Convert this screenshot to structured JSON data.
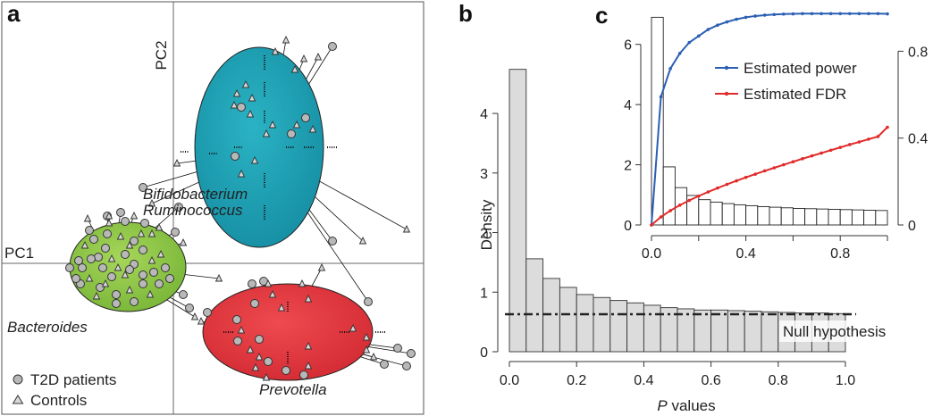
{
  "panel_labels": [
    "a",
    "b",
    "c"
  ],
  "chart_data": [
    {
      "panel": "a",
      "type": "scatter",
      "xlabel": "PC1",
      "ylabel": "PC2",
      "legend": [
        {
          "name": "T2D patients",
          "marker": "circle",
          "color": "#b8b8b8"
        },
        {
          "name": "Controls",
          "marker": "triangle",
          "color": "#d8d8d8"
        }
      ],
      "legend_position": "bottom-left",
      "grid": false,
      "clusters": [
        {
          "name": "Bacteroides",
          "color": "#8dc63f"
        },
        {
          "name": "Bifidobacterium",
          "color": "#1ba1b4"
        },
        {
          "name": "Ruminococcus",
          "color": "#1ba1b4"
        },
        {
          "name": "Prevotella",
          "color": "#e2383f"
        }
      ]
    },
    {
      "panel": "b",
      "type": "bar",
      "xlabel_italic": "P",
      "xlabel_rest": " values",
      "ylabel": "Density",
      "xlim": [
        0,
        1
      ],
      "ylim": [
        0,
        4.9
      ],
      "x_ticks": [
        "0.0",
        "0.2",
        "0.4",
        "0.6",
        "0.8",
        "1.0"
      ],
      "y_ticks": [
        "0",
        "1",
        "2",
        "3",
        "4"
      ],
      "bin_width": 0.05,
      "values": [
        4.74,
        1.56,
        1.23,
        1.08,
        0.96,
        0.91,
        0.86,
        0.82,
        0.78,
        0.74,
        0.72,
        0.7,
        0.7,
        0.69,
        0.68,
        0.67,
        0.66,
        0.65,
        0.65,
        0.64
      ],
      "null_hypothesis": 0.63,
      "annotation": "Null hypothesis",
      "bar_color": "#dcdcdc"
    },
    {
      "panel": "c",
      "type": "line",
      "xlim": [
        0,
        1
      ],
      "ylim_left": [
        0,
        7.0
      ],
      "ylim_right": [
        0,
        0.97
      ],
      "x_ticks": [
        "0.0",
        "0.4",
        "0.8"
      ],
      "y_ticks_left": [
        "0",
        "2",
        "4",
        "6"
      ],
      "y_ticks_right": [
        "0",
        "0.4",
        "0.8"
      ],
      "hist_bin_width": 0.05,
      "hist_values": [
        6.9,
        1.93,
        1.24,
        0.98,
        0.84,
        0.76,
        0.71,
        0.67,
        0.64,
        0.61,
        0.59,
        0.57,
        0.55,
        0.54,
        0.53,
        0.52,
        0.51,
        0.5,
        0.49,
        0.48
      ],
      "legend_position": "center-right",
      "series": [
        {
          "name": "Estimated power",
          "color": "#2b5fb4",
          "axis": "right",
          "x": [
            0,
            0.04,
            0.08,
            0.12,
            0.16,
            0.2,
            0.24,
            0.28,
            0.32,
            0.36,
            0.4,
            0.44,
            0.48,
            0.52,
            0.56,
            0.6,
            0.64,
            0.68,
            0.72,
            0.76,
            0.8,
            0.84,
            0.88,
            0.92,
            0.96,
            1.0
          ],
          "y": [
            0,
            0.59,
            0.72,
            0.79,
            0.84,
            0.87,
            0.9,
            0.92,
            0.935,
            0.947,
            0.956,
            0.962,
            0.966,
            0.969,
            0.971,
            0.972,
            0.973,
            0.973,
            0.973,
            0.973,
            0.973,
            0.973,
            0.973,
            0.973,
            0.973,
            0.972
          ]
        },
        {
          "name": "Estimated FDR",
          "color": "#e12a2a",
          "axis": "right",
          "x": [
            0,
            0.04,
            0.08,
            0.12,
            0.16,
            0.2,
            0.24,
            0.28,
            0.32,
            0.36,
            0.4,
            0.44,
            0.48,
            0.52,
            0.56,
            0.6,
            0.64,
            0.68,
            0.72,
            0.76,
            0.8,
            0.84,
            0.88,
            0.92,
            0.96,
            1.0
          ],
          "y": [
            0,
            0.037,
            0.066,
            0.091,
            0.113,
            0.133,
            0.152,
            0.17,
            0.187,
            0.203,
            0.219,
            0.234,
            0.249,
            0.263,
            0.277,
            0.291,
            0.305,
            0.318,
            0.331,
            0.344,
            0.357,
            0.37,
            0.382,
            0.395,
            0.407,
            0.45
          ]
        }
      ]
    }
  ]
}
